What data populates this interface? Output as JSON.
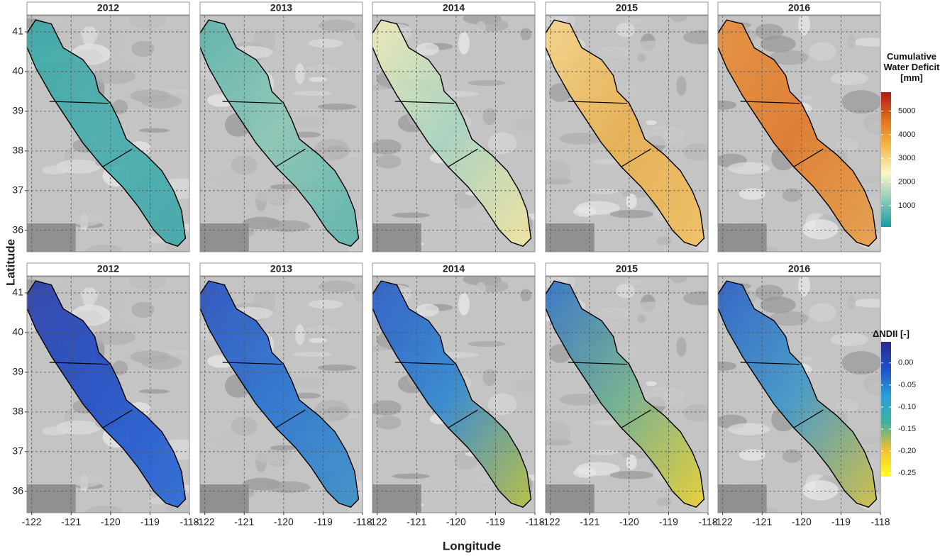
{
  "figure": {
    "axis_labels": {
      "x": "Longitude",
      "y": "Latitude"
    },
    "xlim": [
      -122.12,
      -118
    ],
    "ylim": [
      35.46,
      41.41
    ],
    "xticks": [
      -122,
      -121,
      -120,
      -119,
      -118
    ],
    "yticks": [
      36,
      37,
      38,
      39,
      40,
      41
    ],
    "rows": [
      {
        "panels": [
          {
            "title": "2012",
            "colors": [
              "#3aa6a6",
              "#4aaeae",
              "#3fa8aa"
            ]
          },
          {
            "title": "2013",
            "colors": [
              "#5ab4ac",
              "#8cc7b5",
              "#5ab4ac"
            ]
          },
          {
            "title": "2014",
            "colors": [
              "#f0ecb8",
              "#a8d4c0",
              "#f3e6a0"
            ]
          },
          {
            "title": "2015",
            "colors": [
              "#f6d58a",
              "#e8b050",
              "#f2c060"
            ]
          },
          {
            "title": "2016",
            "colors": [
              "#e8903a",
              "#e07a2a",
              "#e8a048"
            ]
          }
        ],
        "colorbar": {
          "title": "Cumulative Water Deficit [mm]",
          "lim": [
            100,
            5800
          ],
          "ticks": [
            1000,
            2000,
            3000,
            4000,
            5000
          ],
          "colors": [
            "#1a9aa6",
            "#8ccab8",
            "#fbf7c8",
            "#f4b84a",
            "#e0701e",
            "#b01a14"
          ]
        }
      },
      {
        "panels": [
          {
            "title": "2012",
            "colors": [
              "#2a3ea8",
              "#2050c8",
              "#2a6ad8"
            ]
          },
          {
            "title": "2013",
            "colors": [
              "#2a50c0",
              "#2a74d0",
              "#3a90c8"
            ]
          },
          {
            "title": "2014",
            "colors": [
              "#2a5cc8",
              "#3088d0",
              "#b8c040"
            ]
          },
          {
            "title": "2015",
            "colors": [
              "#3070c8",
              "#70b090",
              "#e8d030"
            ]
          },
          {
            "title": "2016",
            "colors": [
              "#2a60c8",
              "#4098c8",
              "#d0c040"
            ]
          }
        ],
        "colorbar": {
          "title": "ΔNDII [-]",
          "lim": [
            -0.258,
            0.048
          ],
          "ticks": [
            {
              "value": 0,
              "label": "0.00"
            },
            -0.05,
            {
              "value": -0.1,
              "label": "-0.10"
            },
            -0.15,
            {
              "value": -0.2,
              "label": "-0.20"
            },
            -0.25
          ],
          "colors": [
            "#ffff20",
            "#f0c030",
            "#40b0a0",
            "#2aa0d8",
            "#2050c8",
            "#2a2a8a"
          ]
        }
      }
    ]
  }
}
